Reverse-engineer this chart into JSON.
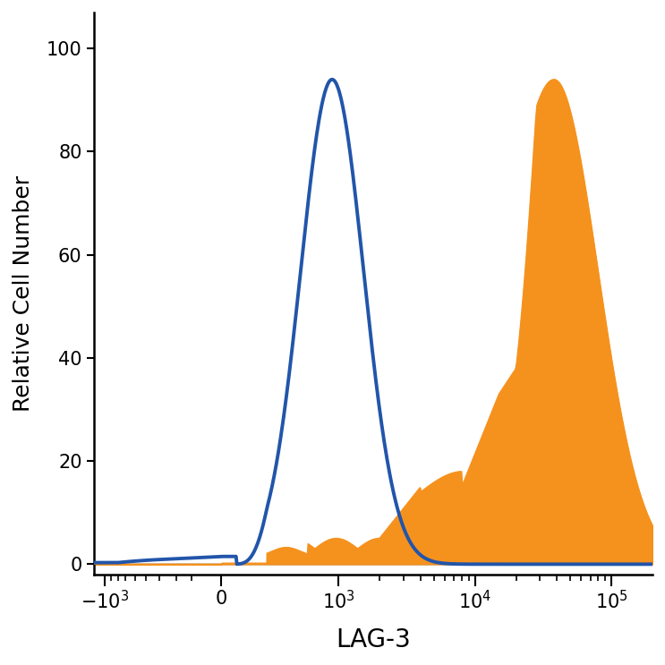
{
  "title": "",
  "xlabel": "LAG-3",
  "ylabel": "Relative Cell Number",
  "xlabel_fontsize": 20,
  "ylabel_fontsize": 18,
  "ylim": [
    -2,
    107
  ],
  "blue_color": "#2255aa",
  "orange_color": "#f5921e",
  "blue_linewidth": 2.8,
  "tick_labelsize": 15,
  "background_color": "#ffffff",
  "linthresh": 300,
  "linscale": 0.3,
  "xmin": -1200,
  "xmax": 200000
}
